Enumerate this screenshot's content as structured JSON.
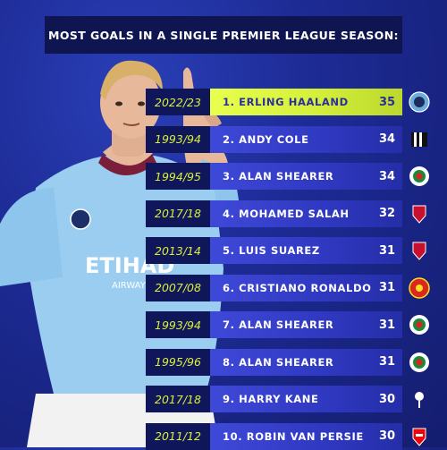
{
  "title": "MOST GOALS IN A SINGLE PREMIER LEAGUE SEASON:",
  "colors": {
    "accent": "#d8ef3a",
    "bar": "#3f49d8",
    "season_bg": "#0f175a",
    "background": "#1d2b95"
  },
  "player_shirt": {
    "sponsor": "ETIHAD",
    "sponsor_sub": "AIRWAYS"
  },
  "rows": [
    {
      "season": "2022/23",
      "label": "1. ERLING HAALAND",
      "goals": "35",
      "badge": "man-city-crest-icon"
    },
    {
      "season": "1993/94",
      "label": "2. ANDY COLE",
      "goals": "34",
      "badge": "newcastle-crest-icon"
    },
    {
      "season": "1994/95",
      "label": "3. ALAN SHEARER",
      "goals": "34",
      "badge": "blackburn-crest-icon"
    },
    {
      "season": "2017/18",
      "label": "4. MOHAMED SALAH",
      "goals": "32",
      "badge": "liverpool-crest-icon"
    },
    {
      "season": "2013/14",
      "label": "5. LUIS SUAREZ",
      "goals": "31",
      "badge": "liverpool-crest-icon"
    },
    {
      "season": "2007/08",
      "label": "6. CRISTIANO RONALDO",
      "goals": "31",
      "badge": "man-united-crest-icon"
    },
    {
      "season": "1993/94",
      "label": "7. ALAN SHEARER",
      "goals": "31",
      "badge": "blackburn-crest-icon"
    },
    {
      "season": "1995/96",
      "label": "8. ALAN SHEARER",
      "goals": "31",
      "badge": "blackburn-crest-icon"
    },
    {
      "season": "2017/18",
      "label": "9. HARRY KANE",
      "goals": "30",
      "badge": "tottenham-crest-icon"
    },
    {
      "season": "2011/12",
      "label": "10. ROBIN VAN PERSIE",
      "goals": "30",
      "badge": "arsenal-crest-icon"
    }
  ]
}
